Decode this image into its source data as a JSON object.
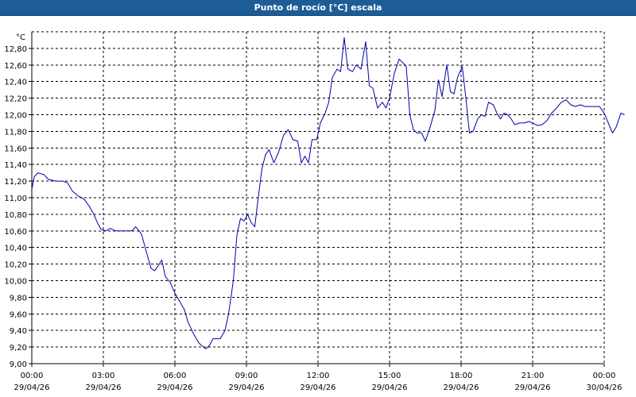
{
  "window": {
    "title": "Punto de rocío [°C] escala"
  },
  "chart_data": {
    "type": "line",
    "title": "Punto de rocío [°C] escala",
    "ylabel": "°C",
    "xlabel": "",
    "ylim": [
      9.0,
      13.0
    ],
    "xlim": [
      0,
      24
    ],
    "grid": true,
    "y_ticks": [
      "9,00",
      "9,20",
      "9,40",
      "9,60",
      "9,80",
      "10,00",
      "10,20",
      "10,40",
      "10,60",
      "10,80",
      "11,00",
      "11,20",
      "11,40",
      "11,60",
      "11,80",
      "12,00",
      "12,20",
      "12,40",
      "12,60",
      "12,80"
    ],
    "x_ticks": [
      {
        "time": "00:00",
        "date": "29/04/26"
      },
      {
        "time": "03:00",
        "date": "29/04/26"
      },
      {
        "time": "06:00",
        "date": "29/04/26"
      },
      {
        "time": "09:00",
        "date": "29/04/26"
      },
      {
        "time": "12:00",
        "date": "29/04/26"
      },
      {
        "time": "15:00",
        "date": "29/04/26"
      },
      {
        "time": "18:00",
        "date": "29/04/26"
      },
      {
        "time": "21:00",
        "date": "29/04/26"
      },
      {
        "time": "00:00",
        "date": "30/04/26"
      }
    ],
    "series": [
      {
        "color": "#0000aa",
        "points": [
          [
            0.0,
            11.1
          ],
          [
            0.1,
            11.25
          ],
          [
            0.25,
            11.3
          ],
          [
            0.5,
            11.28
          ],
          [
            0.7,
            11.22
          ],
          [
            1.0,
            11.2
          ],
          [
            1.3,
            11.2
          ],
          [
            1.5,
            11.18
          ],
          [
            1.7,
            11.08
          ],
          [
            1.9,
            11.03
          ],
          [
            2.2,
            10.98
          ],
          [
            2.4,
            10.9
          ],
          [
            2.6,
            10.8
          ],
          [
            2.75,
            10.7
          ],
          [
            2.9,
            10.62
          ],
          [
            3.1,
            10.6
          ],
          [
            3.3,
            10.63
          ],
          [
            3.5,
            10.6
          ],
          [
            3.7,
            10.6
          ],
          [
            4.0,
            10.6
          ],
          [
            4.2,
            10.6
          ],
          [
            4.35,
            10.65
          ],
          [
            4.5,
            10.6
          ],
          [
            4.6,
            10.56
          ],
          [
            4.8,
            10.35
          ],
          [
            5.0,
            10.15
          ],
          [
            5.15,
            10.12
          ],
          [
            5.3,
            10.18
          ],
          [
            5.45,
            10.25
          ],
          [
            5.6,
            10.05
          ],
          [
            5.8,
            9.98
          ],
          [
            6.0,
            9.85
          ],
          [
            6.2,
            9.75
          ],
          [
            6.4,
            9.65
          ],
          [
            6.55,
            9.5
          ],
          [
            6.8,
            9.35
          ],
          [
            7.0,
            9.25
          ],
          [
            7.2,
            9.2
          ],
          [
            7.3,
            9.18
          ],
          [
            7.45,
            9.22
          ],
          [
            7.6,
            9.3
          ],
          [
            7.9,
            9.3
          ],
          [
            8.1,
            9.4
          ],
          [
            8.25,
            9.6
          ],
          [
            8.45,
            10.0
          ],
          [
            8.6,
            10.55
          ],
          [
            8.75,
            10.75
          ],
          [
            8.9,
            10.72
          ],
          [
            9.05,
            10.8
          ],
          [
            9.2,
            10.7
          ],
          [
            9.35,
            10.65
          ],
          [
            9.45,
            10.9
          ],
          [
            9.65,
            11.35
          ],
          [
            9.8,
            11.52
          ],
          [
            9.95,
            11.58
          ],
          [
            10.15,
            11.42
          ],
          [
            10.35,
            11.55
          ],
          [
            10.55,
            11.75
          ],
          [
            10.75,
            11.82
          ],
          [
            10.95,
            11.7
          ],
          [
            11.15,
            11.68
          ],
          [
            11.3,
            11.42
          ],
          [
            11.45,
            11.5
          ],
          [
            11.6,
            11.42
          ],
          [
            11.75,
            11.7
          ],
          [
            11.95,
            11.7
          ],
          [
            12.1,
            11.9
          ],
          [
            12.3,
            12.02
          ],
          [
            12.45,
            12.15
          ],
          [
            12.6,
            12.45
          ],
          [
            12.8,
            12.55
          ],
          [
            12.95,
            12.52
          ],
          [
            13.1,
            12.93
          ],
          [
            13.25,
            12.55
          ],
          [
            13.45,
            12.52
          ],
          [
            13.6,
            12.6
          ],
          [
            13.8,
            12.55
          ],
          [
            14.0,
            12.88
          ],
          [
            14.15,
            12.35
          ],
          [
            14.3,
            12.32
          ],
          [
            14.5,
            12.08
          ],
          [
            14.7,
            12.15
          ],
          [
            14.85,
            12.08
          ],
          [
            15.0,
            12.2
          ],
          [
            15.2,
            12.5
          ],
          [
            15.4,
            12.67
          ],
          [
            15.55,
            12.63
          ],
          [
            15.7,
            12.58
          ],
          [
            15.85,
            12.0
          ],
          [
            16.0,
            11.82
          ],
          [
            16.15,
            11.78
          ],
          [
            16.35,
            11.78
          ],
          [
            16.5,
            11.68
          ],
          [
            16.7,
            11.85
          ],
          [
            16.9,
            12.05
          ],
          [
            17.05,
            12.42
          ],
          [
            17.2,
            12.22
          ],
          [
            17.4,
            12.6
          ],
          [
            17.55,
            12.28
          ],
          [
            17.7,
            12.25
          ],
          [
            17.85,
            12.45
          ],
          [
            18.05,
            12.58
          ],
          [
            18.2,
            12.2
          ],
          [
            18.35,
            11.78
          ],
          [
            18.5,
            11.8
          ],
          [
            18.7,
            11.95
          ],
          [
            18.85,
            12.0
          ],
          [
            19.0,
            11.98
          ],
          [
            19.15,
            12.15
          ],
          [
            19.35,
            12.12
          ],
          [
            19.5,
            12.02
          ],
          [
            19.65,
            11.95
          ],
          [
            19.8,
            12.02
          ],
          [
            19.95,
            12.0
          ],
          [
            20.1,
            11.95
          ],
          [
            20.25,
            11.88
          ],
          [
            20.45,
            11.9
          ],
          [
            20.65,
            11.9
          ],
          [
            20.85,
            11.92
          ],
          [
            21.0,
            11.9
          ],
          [
            21.2,
            11.87
          ],
          [
            21.4,
            11.88
          ],
          [
            21.6,
            11.93
          ],
          [
            21.8,
            12.02
          ],
          [
            22.0,
            12.08
          ],
          [
            22.2,
            12.15
          ],
          [
            22.4,
            12.18
          ],
          [
            22.6,
            12.12
          ],
          [
            22.8,
            12.1
          ],
          [
            23.0,
            12.12
          ],
          [
            23.2,
            12.1
          ],
          [
            23.4,
            12.1
          ],
          [
            23.6,
            12.1
          ],
          [
            23.8,
            12.1
          ],
          [
            24.0,
            12.02
          ],
          [
            24.2,
            11.88
          ],
          [
            24.35,
            11.78
          ],
          [
            24.5,
            11.85
          ],
          [
            24.7,
            12.02
          ],
          [
            24.85,
            12.0
          ]
        ]
      }
    ]
  }
}
